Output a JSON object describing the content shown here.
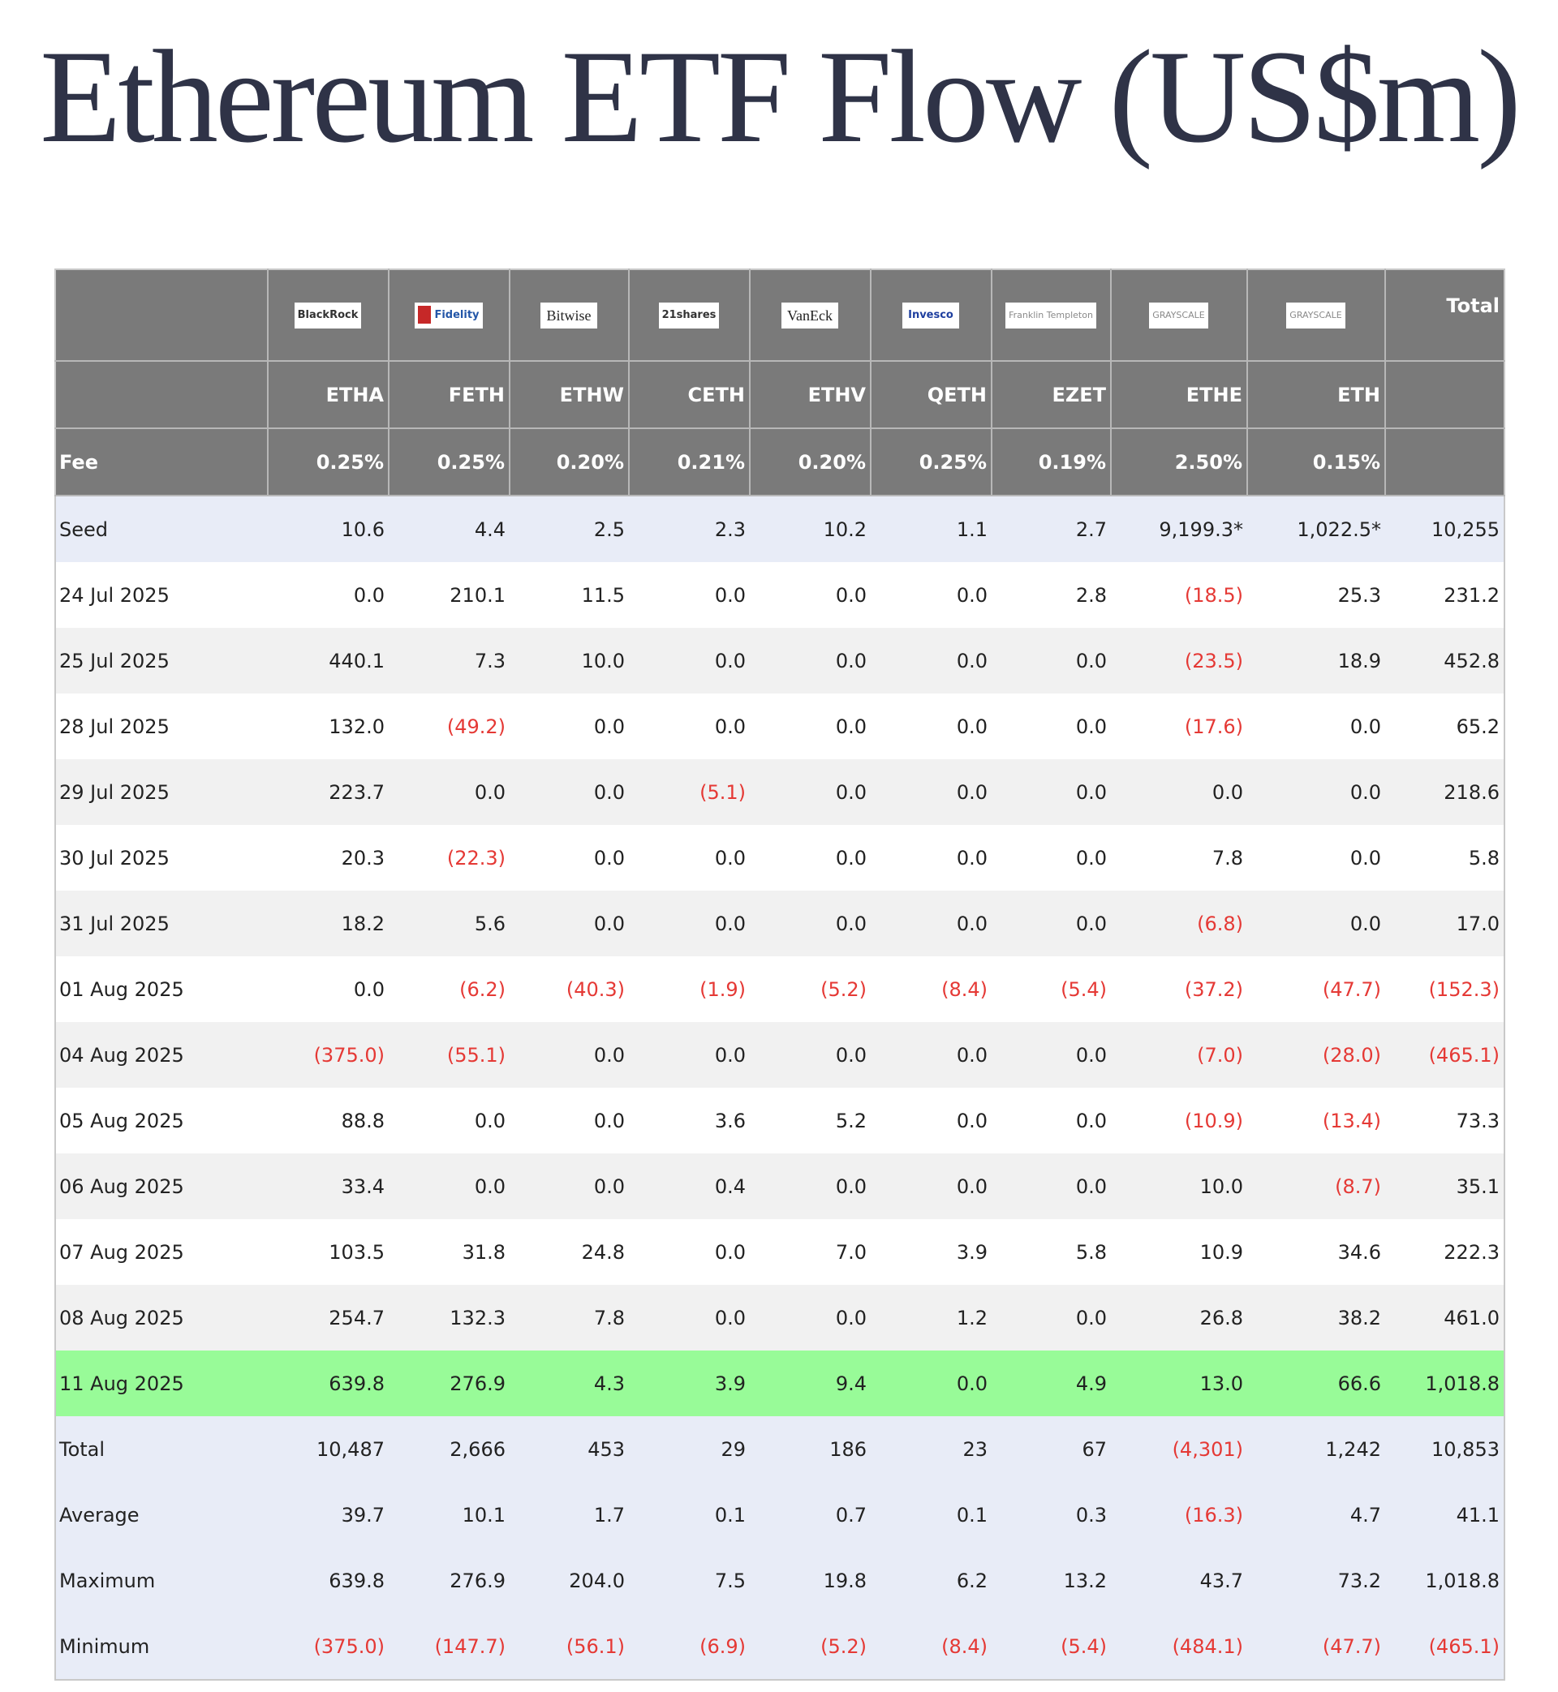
{
  "title": "Ethereum ETF Flow (US$m)",
  "chart_data": {
    "type": "table",
    "title": "Ethereum ETF Flow (US$m)",
    "issuer_logos": [
      "BlackRock",
      "Fidelity",
      "Bitwise",
      "21shares",
      "VanEck",
      "Invesco",
      "Franklin Templeton",
      "GRAYSCALE",
      "GRAYSCALE"
    ],
    "total_label": "Total",
    "tickers": [
      "ETHA",
      "FETH",
      "ETHW",
      "CETH",
      "ETHV",
      "QETH",
      "EZET",
      "ETHE",
      "ETH"
    ],
    "fee_label": "Fee",
    "fees": [
      "0.25%",
      "0.25%",
      "0.20%",
      "0.21%",
      "0.20%",
      "0.25%",
      "0.19%",
      "2.50%",
      "0.15%",
      ""
    ],
    "rows": [
      {
        "label": "Seed",
        "values": [
          "10.6",
          "4.4",
          "2.5",
          "2.3",
          "10.2",
          "1.1",
          "2.7",
          "9,199.3*",
          "1,022.5*",
          "10,255"
        ]
      },
      {
        "label": "24 Jul 2025",
        "values": [
          "0.0",
          "210.1",
          "11.5",
          "0.0",
          "0.0",
          "0.0",
          "2.8",
          "(18.5)",
          "25.3",
          "231.2"
        ]
      },
      {
        "label": "25 Jul 2025",
        "values": [
          "440.1",
          "7.3",
          "10.0",
          "0.0",
          "0.0",
          "0.0",
          "0.0",
          "(23.5)",
          "18.9",
          "452.8"
        ]
      },
      {
        "label": "28 Jul 2025",
        "values": [
          "132.0",
          "(49.2)",
          "0.0",
          "0.0",
          "0.0",
          "0.0",
          "0.0",
          "(17.6)",
          "0.0",
          "65.2"
        ]
      },
      {
        "label": "29 Jul 2025",
        "values": [
          "223.7",
          "0.0",
          "0.0",
          "(5.1)",
          "0.0",
          "0.0",
          "0.0",
          "0.0",
          "0.0",
          "218.6"
        ]
      },
      {
        "label": "30 Jul 2025",
        "values": [
          "20.3",
          "(22.3)",
          "0.0",
          "0.0",
          "0.0",
          "0.0",
          "0.0",
          "7.8",
          "0.0",
          "5.8"
        ]
      },
      {
        "label": "31 Jul 2025",
        "values": [
          "18.2",
          "5.6",
          "0.0",
          "0.0",
          "0.0",
          "0.0",
          "0.0",
          "(6.8)",
          "0.0",
          "17.0"
        ]
      },
      {
        "label": "01 Aug 2025",
        "values": [
          "0.0",
          "(6.2)",
          "(40.3)",
          "(1.9)",
          "(5.2)",
          "(8.4)",
          "(5.4)",
          "(37.2)",
          "(47.7)",
          "(152.3)"
        ]
      },
      {
        "label": "04 Aug 2025",
        "values": [
          "(375.0)",
          "(55.1)",
          "0.0",
          "0.0",
          "0.0",
          "0.0",
          "0.0",
          "(7.0)",
          "(28.0)",
          "(465.1)"
        ]
      },
      {
        "label": "05 Aug 2025",
        "values": [
          "88.8",
          "0.0",
          "0.0",
          "3.6",
          "5.2",
          "0.0",
          "0.0",
          "(10.9)",
          "(13.4)",
          "73.3"
        ]
      },
      {
        "label": "06 Aug 2025",
        "values": [
          "33.4",
          "0.0",
          "0.0",
          "0.4",
          "0.0",
          "0.0",
          "0.0",
          "10.0",
          "(8.7)",
          "35.1"
        ]
      },
      {
        "label": "07 Aug 2025",
        "values": [
          "103.5",
          "31.8",
          "24.8",
          "0.0",
          "7.0",
          "3.9",
          "5.8",
          "10.9",
          "34.6",
          "222.3"
        ]
      },
      {
        "label": "08 Aug 2025",
        "values": [
          "254.7",
          "132.3",
          "7.8",
          "0.0",
          "0.0",
          "1.2",
          "0.0",
          "26.8",
          "38.2",
          "461.0"
        ]
      },
      {
        "label": "11 Aug 2025",
        "values": [
          "639.8",
          "276.9",
          "4.3",
          "3.9",
          "9.4",
          "0.0",
          "4.9",
          "13.0",
          "66.6",
          "1,018.8"
        ]
      },
      {
        "label": "Total",
        "values": [
          "10,487",
          "2,666",
          "453",
          "29",
          "186",
          "23",
          "67",
          "(4,301)",
          "1,242",
          "10,853"
        ]
      },
      {
        "label": "Average",
        "values": [
          "39.7",
          "10.1",
          "1.7",
          "0.1",
          "0.7",
          "0.1",
          "0.3",
          "(16.3)",
          "4.7",
          "41.1"
        ]
      },
      {
        "label": "Maximum",
        "values": [
          "639.8",
          "276.9",
          "204.0",
          "7.5",
          "19.8",
          "6.2",
          "13.2",
          "43.7",
          "73.2",
          "1,018.8"
        ]
      },
      {
        "label": "Minimum",
        "values": [
          "(375.0)",
          "(147.7)",
          "(56.1)",
          "(6.9)",
          "(5.2)",
          "(8.4)",
          "(5.4)",
          "(484.1)",
          "(47.7)",
          "(465.1)"
        ]
      }
    ],
    "highlight_row": "11 Aug 2025",
    "colors": {
      "header_bg": "#7a7a7a",
      "seed_summary_bg": "#e8ecf7",
      "highlight_bg": "#98fb98",
      "negative_text": "#e53935",
      "stripe_bg": "#f1f1f1",
      "title_text": "#2f3347"
    }
  }
}
